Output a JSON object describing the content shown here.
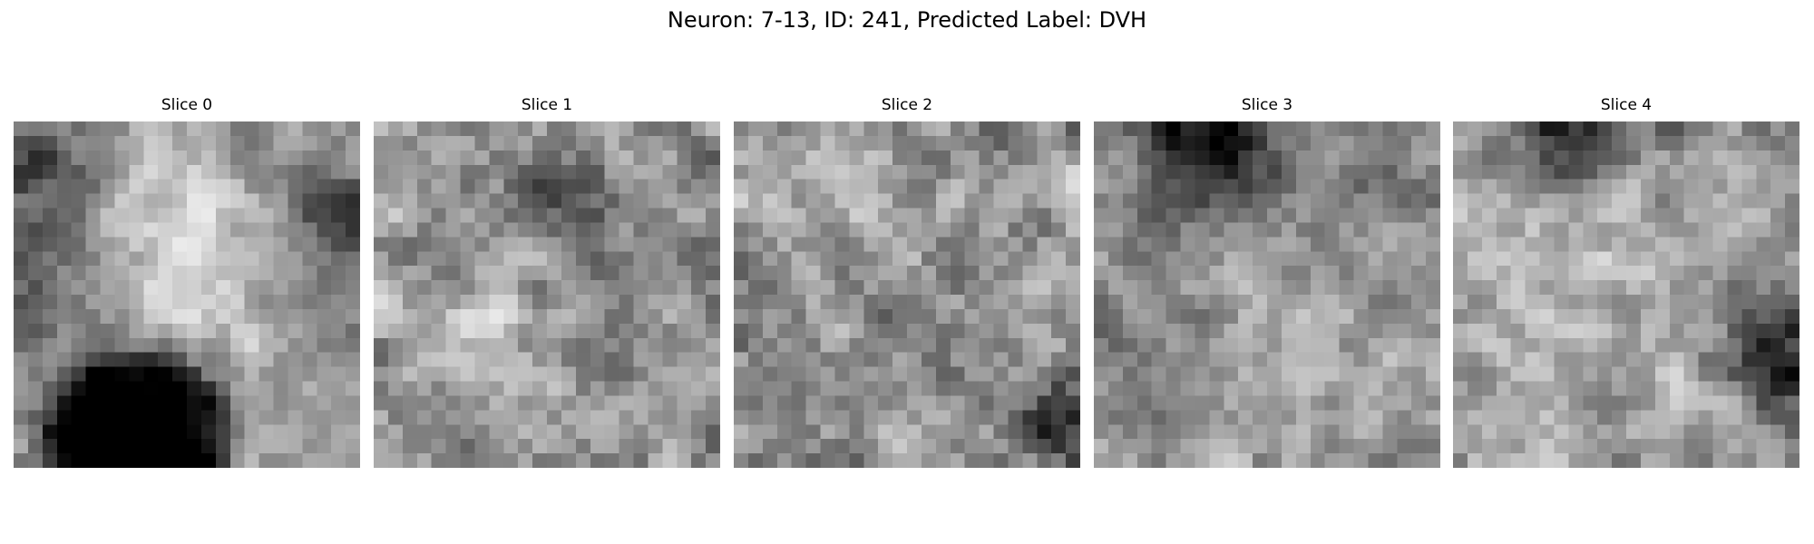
{
  "figure": {
    "title": "Neuron: 7-13, ID: 241, Predicted Label: DVH",
    "colormap": "gray"
  },
  "slices": [
    {
      "title": "Slice 0",
      "grid": 24
    },
    {
      "title": "Slice 1",
      "grid": 24
    },
    {
      "title": "Slice 2",
      "grid": 24
    },
    {
      "title": "Slice 3",
      "grid": 24
    },
    {
      "title": "Slice 4",
      "grid": 24
    }
  ]
}
